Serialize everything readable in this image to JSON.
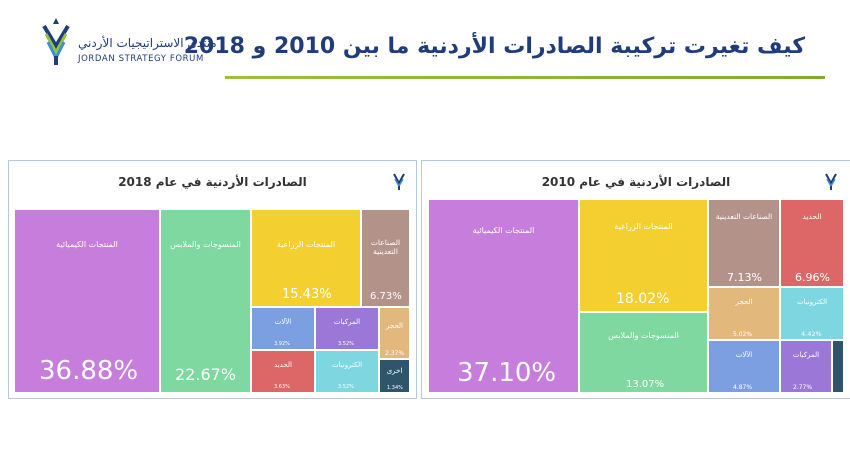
{
  "header": {
    "title": "كيف تغيرت تركيبة الصادرات الأردنية ما بين 2010 و 2018",
    "logo_ar": "منتدى الاستراتيجيات الأردني",
    "logo_en": "JORDAN STRATEGY FORUM"
  },
  "colors": {
    "chemicals": "#c77ddb",
    "textiles": "#7ed8a0",
    "agriculture": "#f3cf2f",
    "mining": "#b3928a",
    "machinery": "#7b9fe1",
    "vehicles": "#9b78d8",
    "iron": "#dd6766",
    "electronics": "#7dd6e0",
    "stone": "#e2b87c",
    "other": "#2e556c",
    "title_text": "#1f3d7a",
    "rule": "#8cb93a"
  },
  "chart_data": [
    {
      "type": "treemap",
      "title": "الصادرات الأردنية في عام 2018",
      "items": [
        {
          "id": "chemicals",
          "label": "المنتجات الكيميائية",
          "value": 36.88,
          "display": "36.88%"
        },
        {
          "id": "textiles",
          "label": "المنسوجات والملابس",
          "value": 22.67,
          "display": "22.67%"
        },
        {
          "id": "agriculture",
          "label": "المنتجات الزراعية",
          "value": 15.43,
          "display": "15.43%"
        },
        {
          "id": "mining",
          "label": "الصناعات التعدينية",
          "value": 6.73,
          "display": "6.73%"
        },
        {
          "id": "machinery",
          "label": "الآلات",
          "value": 3.92,
          "display": "3.92%"
        },
        {
          "id": "vehicles",
          "label": "المركبات",
          "value": 3.52,
          "display": "3.52%"
        },
        {
          "id": "stone",
          "label": "الحجر",
          "value": 2.37,
          "display": "2.37%"
        },
        {
          "id": "iron",
          "label": "الحديد",
          "value": 3.63,
          "display": "3.63%"
        },
        {
          "id": "electronics",
          "label": "الكترونيات",
          "value": 3.52,
          "display": "3.52%"
        },
        {
          "id": "other",
          "label": "اخرى",
          "value": 1.34,
          "display": "1.34%"
        }
      ]
    },
    {
      "type": "treemap",
      "title": "الصادرات الأردنية في عام 2010",
      "items": [
        {
          "id": "chemicals",
          "label": "المنتجات الكيميائية",
          "value": 37.1,
          "display": "37.10%"
        },
        {
          "id": "agriculture",
          "label": "المنتجات الزراعية",
          "value": 18.02,
          "display": "18.02%"
        },
        {
          "id": "textiles",
          "label": "المنسوجات والملابس",
          "value": 13.07,
          "display": "13.07%"
        },
        {
          "id": "mining",
          "label": "الصناعات التعدينية",
          "value": 7.13,
          "display": "7.13%"
        },
        {
          "id": "iron",
          "label": "الحديد",
          "value": 6.96,
          "display": "6.96%"
        },
        {
          "id": "stone",
          "label": "الحجر",
          "value": 5.02,
          "display": "5.02%"
        },
        {
          "id": "electronics",
          "label": "الكترونيات",
          "value": 4.42,
          "display": "4.42%"
        },
        {
          "id": "machinery",
          "label": "الآلات",
          "value": 4.87,
          "display": "4.87%"
        },
        {
          "id": "vehicles",
          "label": "المركبات",
          "value": 2.77,
          "display": "2.77%"
        },
        {
          "id": "other",
          "label": "",
          "value": 0.64,
          "display": ""
        }
      ]
    }
  ]
}
